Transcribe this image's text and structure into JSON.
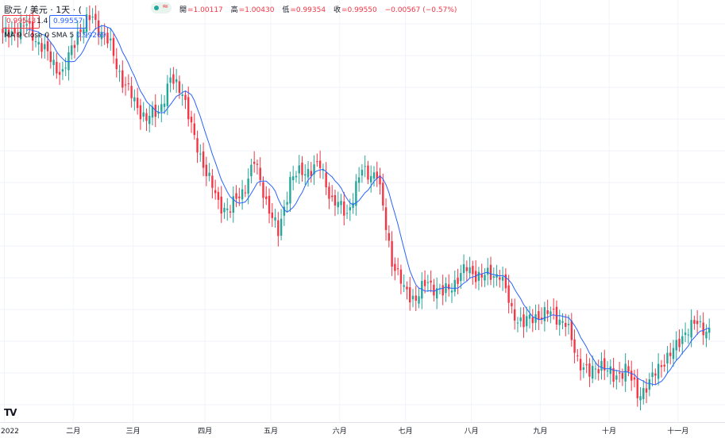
{
  "header": {
    "symbol": "歐元 / 美元 · 1天 · (",
    "approx_glyph": "≈",
    "ohlc": {
      "open_label": "開",
      "open": "=1.00117",
      "high_label": "高",
      "high": "=1.00430",
      "low_label": "低",
      "low": "=0.99354",
      "close_label": "收",
      "close": "=0.99550",
      "change": "−0.00567 (−0.57%)"
    },
    "sell_price": "0.99543",
    "spread": "1.4",
    "buy_price": "0.99557",
    "ma_label": "MA 9 close 0 SMA 5",
    "ma_value": "0.99269"
  },
  "logo": "TV",
  "colors": {
    "up": "#26a69a",
    "down": "#f23645",
    "ma": "#2962ff",
    "grid": "#f0f3fa",
    "text": "#131722"
  },
  "chart_data": {
    "type": "candlestick",
    "title": "",
    "xlabel": "",
    "ylabel": "",
    "x_ticks": [
      "2022",
      "二月",
      "三月",
      "四月",
      "五月",
      "六月",
      "七月",
      "八月",
      "九月",
      "十月",
      "十一月"
    ],
    "ylim": [
      0.952,
      1.15
    ],
    "moving_average": {
      "type": "SMA",
      "length": 9,
      "source": "close"
    },
    "anchors_close": [
      [
        0,
        1.133
      ],
      [
        8,
        1.138
      ],
      [
        14,
        1.126
      ],
      [
        20,
        1.115
      ],
      [
        25,
        1.135
      ],
      [
        30,
        1.142
      ],
      [
        36,
        1.128
      ],
      [
        40,
        1.112
      ],
      [
        45,
        1.1
      ],
      [
        48,
        1.094
      ],
      [
        52,
        1.098
      ],
      [
        56,
        1.112
      ],
      [
        60,
        1.108
      ],
      [
        64,
        1.084
      ],
      [
        68,
        1.07
      ],
      [
        72,
        1.054
      ],
      [
        76,
        1.052
      ],
      [
        80,
        1.06
      ],
      [
        84,
        1.074
      ],
      [
        88,
        1.056
      ],
      [
        92,
        1.04
      ],
      [
        96,
        1.066
      ],
      [
        101,
        1.07
      ],
      [
        106,
        1.072
      ],
      [
        110,
        1.056
      ],
      [
        115,
        1.05
      ],
      [
        120,
        1.07
      ],
      [
        125,
        1.068
      ],
      [
        130,
        1.028
      ],
      [
        134,
        1.014
      ],
      [
        138,
        1.01
      ],
      [
        142,
        1.018
      ],
      [
        147,
        1.012
      ],
      [
        151,
        1.018
      ],
      [
        155,
        1.024
      ],
      [
        160,
        1.02
      ],
      [
        166,
        1.022
      ],
      [
        170,
        1.004
      ],
      [
        174,
        0.998
      ],
      [
        178,
        1.002
      ],
      [
        184,
        1.003
      ],
      [
        188,
        0.998
      ],
      [
        192,
        0.982
      ],
      [
        196,
        0.974
      ],
      [
        200,
        0.98
      ],
      [
        204,
        0.972
      ],
      [
        208,
        0.978
      ],
      [
        212,
        0.965
      ],
      [
        216,
        0.97
      ],
      [
        220,
        0.98
      ],
      [
        224,
        0.985
      ],
      [
        228,
        0.995
      ],
      [
        232,
        0.998
      ],
      [
        236,
        0.995
      ]
    ]
  }
}
